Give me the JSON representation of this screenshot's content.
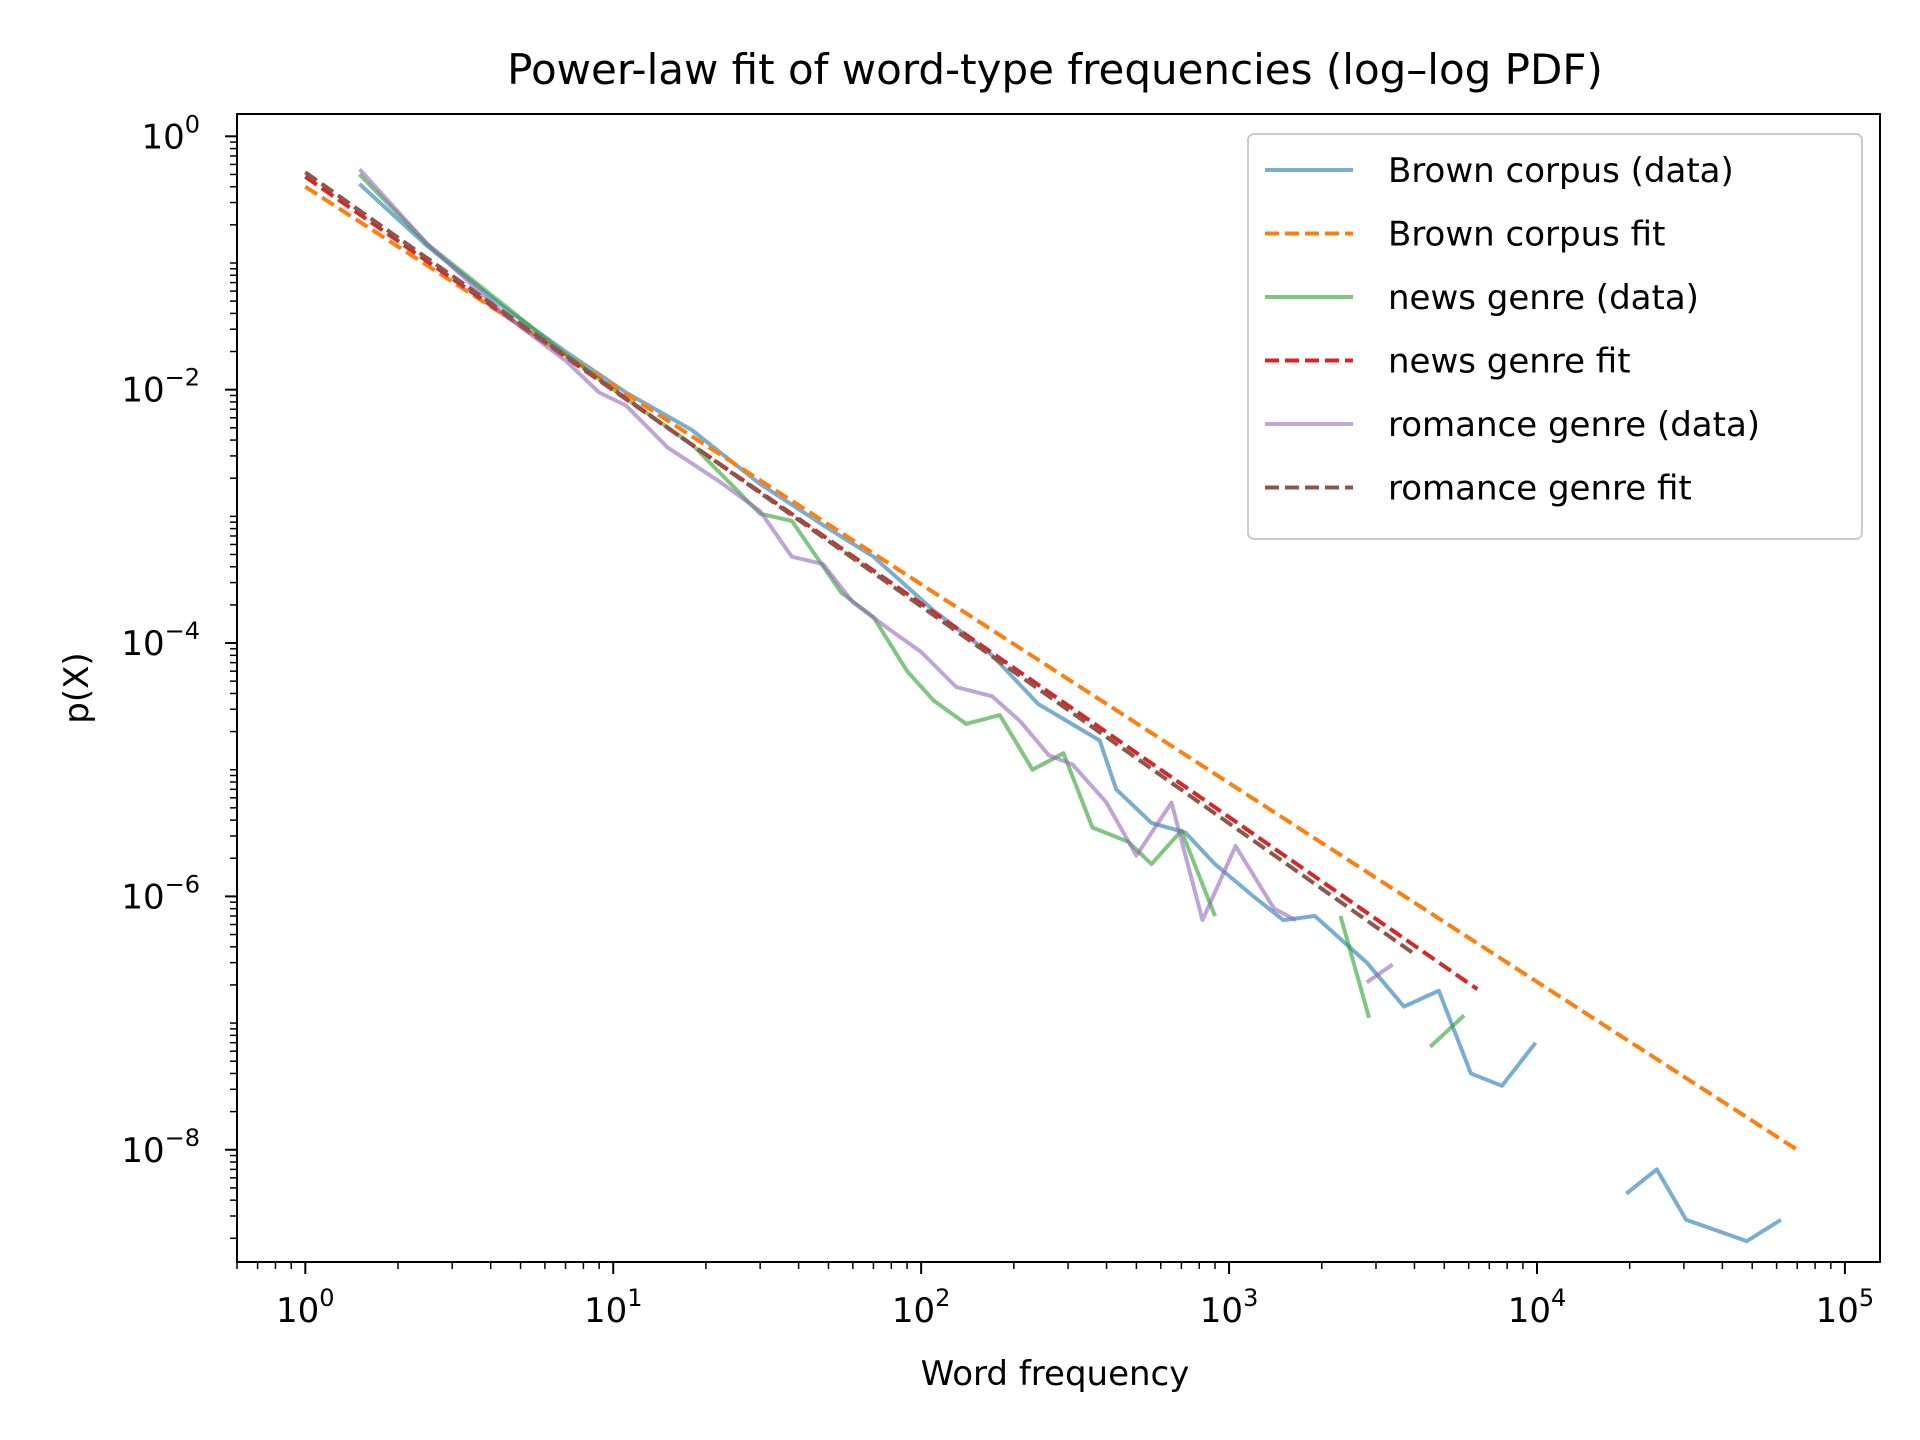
{
  "chart_data": {
    "type": "line",
    "title": "Power-law fit of word-type frequencies (log–log PDF)",
    "xlabel": "Word frequency",
    "ylabel": "p(X)",
    "xscale": "log",
    "yscale": "log",
    "xlim": [
      0.6,
      130000
    ],
    "ylim": [
      1.3e-09,
      1.5
    ],
    "grid": false,
    "legend_position": "top-right",
    "x_ticks": [
      {
        "value": 1,
        "base": "10",
        "exp": "0"
      },
      {
        "value": 10,
        "base": "10",
        "exp": "1"
      },
      {
        "value": 100,
        "base": "10",
        "exp": "2"
      },
      {
        "value": 1000,
        "base": "10",
        "exp": "3"
      },
      {
        "value": 10000,
        "base": "10",
        "exp": "4"
      },
      {
        "value": 100000,
        "base": "10",
        "exp": "5"
      }
    ],
    "y_ticks": [
      {
        "value": 1,
        "base": "10",
        "exp": "0"
      },
      {
        "value": 0.01,
        "base": "10",
        "exp": "−2"
      },
      {
        "value": 0.0001,
        "base": "10",
        "exp": "−4"
      },
      {
        "value": 1e-06,
        "base": "10",
        "exp": "−6"
      },
      {
        "value": 1e-08,
        "base": "10",
        "exp": "−8"
      }
    ],
    "series": [
      {
        "name": "Brown corpus (data)",
        "color": "#1f77b4",
        "style": "solid",
        "alpha": 0.6,
        "segments": [
          [
            [
              1.5,
              0.42
            ],
            [
              2.5,
              0.135
            ],
            [
              4.5,
              0.043
            ],
            [
              7.0,
              0.02
            ],
            [
              11,
              0.0095
            ],
            [
              18,
              0.0048
            ],
            [
              30,
              0.0018
            ],
            [
              50,
              0.0008
            ],
            [
              70,
              0.00048
            ],
            [
              110,
              0.00018
            ],
            [
              170,
              8e-05
            ],
            [
              240,
              3.3e-05
            ],
            [
              380,
              1.7e-05
            ],
            [
              430,
              7e-06
            ],
            [
              560,
              3.8e-06
            ],
            [
              720,
              3.2e-06
            ],
            [
              900,
              1.8e-06
            ],
            [
              1200,
              1e-06
            ],
            [
              1500,
              6.5e-07
            ],
            [
              1900,
              7e-07
            ],
            [
              2800,
              3e-07
            ],
            [
              3700,
              1.35e-07
            ],
            [
              4800,
              1.8e-07
            ],
            [
              6100,
              4e-08
            ],
            [
              7700,
              3.2e-08
            ],
            [
              9900,
              7e-08
            ]
          ],
          [
            [
              19500,
              4.5e-09
            ],
            [
              24500,
              7e-09
            ],
            [
              30500,
              2.8e-09
            ],
            [
              48000,
              1.9e-09
            ],
            [
              62000,
              2.8e-09
            ]
          ]
        ]
      },
      {
        "name": "Brown corpus fit",
        "color": "#ff7f0e",
        "style": "dashed",
        "alpha": 1,
        "segments": [
          [
            [
              1,
              0.4
            ],
            [
              70000,
              1e-08
            ]
          ]
        ]
      },
      {
        "name": "news genre (data)",
        "color": "#2ca02c",
        "style": "solid",
        "alpha": 0.6,
        "segments": [
          [
            [
              1.5,
              0.5
            ],
            [
              2.5,
              0.14
            ],
            [
              4.5,
              0.045
            ],
            [
              7.0,
              0.019
            ],
            [
              11,
              0.0085
            ],
            [
              18,
              0.0037
            ],
            [
              30,
              0.00105
            ],
            [
              38,
              0.00092
            ],
            [
              55,
              0.00025
            ],
            [
              70,
              0.00016
            ],
            [
              90,
              6e-05
            ],
            [
              110,
              3.5e-05
            ],
            [
              140,
              2.3e-05
            ],
            [
              180,
              2.7e-05
            ],
            [
              230,
              1e-05
            ],
            [
              290,
              1.35e-05
            ],
            [
              360,
              3.5e-06
            ],
            [
              470,
              2.7e-06
            ],
            [
              560,
              1.8e-06
            ],
            [
              700,
              3.3e-06
            ],
            [
              900,
              7e-07
            ]
          ],
          [
            [
              2300,
              7e-07
            ],
            [
              2850,
              1.1e-07
            ]
          ],
          [
            [
              4500,
              6.5e-08
            ],
            [
              5800,
              1.15e-07
            ]
          ]
        ]
      },
      {
        "name": "news genre fit",
        "color": "#d62728",
        "style": "dashed",
        "alpha": 1,
        "segments": [
          [
            [
              1,
              0.48
            ],
            [
              6400,
              1.85e-07
            ]
          ]
        ]
      },
      {
        "name": "romance genre (data)",
        "color": "#9467bd",
        "style": "solid",
        "alpha": 0.6,
        "segments": [
          [
            [
              1.5,
              0.55
            ],
            [
              2.5,
              0.14
            ],
            [
              4.5,
              0.038
            ],
            [
              7.0,
              0.017
            ],
            [
              9.0,
              0.0095
            ],
            [
              11,
              0.0075
            ],
            [
              15,
              0.0035
            ],
            [
              22,
              0.0019
            ],
            [
              30,
              0.0011
            ],
            [
              38,
              0.00048
            ],
            [
              48,
              0.00042
            ],
            [
              60,
              0.00021
            ],
            [
              80,
              0.000125
            ],
            [
              100,
              8.5e-05
            ],
            [
              130,
              4.5e-05
            ],
            [
              170,
              3.8e-05
            ],
            [
              210,
              2.4e-05
            ],
            [
              260,
              1.3e-05
            ],
            [
              310,
              1.1e-05
            ],
            [
              400,
              5.5e-06
            ],
            [
              500,
              2.1e-06
            ],
            [
              650,
              5.5e-06
            ],
            [
              820,
              6.5e-07
            ],
            [
              1050,
              2.5e-06
            ],
            [
              1400,
              8e-07
            ],
            [
              1650,
              6.5e-07
            ]
          ],
          [
            [
              2800,
              2.1e-07
            ],
            [
              3400,
              2.9e-07
            ]
          ]
        ]
      },
      {
        "name": "romance genre fit",
        "color": "#8c564b",
        "style": "dashed",
        "alpha": 1,
        "segments": [
          [
            [
              1,
              0.52
            ],
            [
              4000,
              3.5e-07
            ]
          ]
        ]
      }
    ]
  }
}
